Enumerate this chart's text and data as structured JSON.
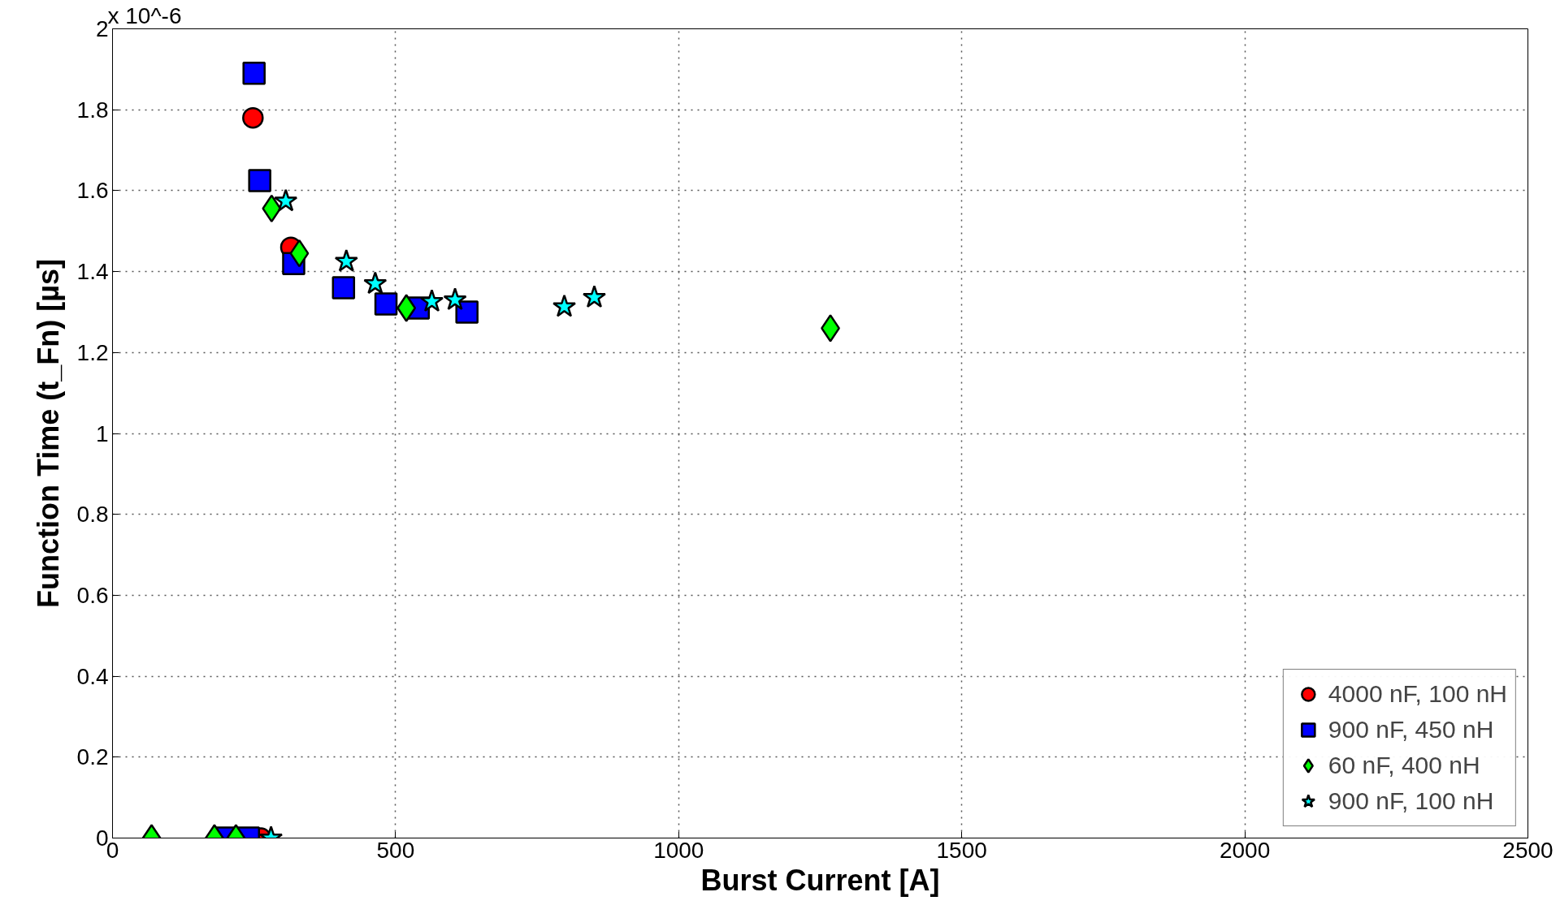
{
  "chart_data": {
    "type": "scatter",
    "xlabel": "Burst Current [A]",
    "ylabel": "Function Time (t_Fn) [µs]",
    "annotations": [
      "x 10^-6"
    ],
    "xlim": [
      0,
      2500
    ],
    "xticks": [
      0,
      500,
      1000,
      1500,
      2000,
      2500
    ],
    "ylim": [
      0,
      2
    ],
    "yticks": [
      0,
      0.2,
      0.4,
      0.6,
      0.8,
      1,
      1.2,
      1.4,
      1.6,
      1.8,
      2
    ],
    "grid": true,
    "legend": "bottom right",
    "series": [
      {
        "name": "4000 nF, 100 nH",
        "color": "#ff0000",
        "marker": "circle",
        "x": [
          248,
          315,
          262
        ],
        "values": [
          1.78,
          1.46,
          0
        ]
      },
      {
        "name": "900 nF, 450 nH",
        "color": "#0000ff",
        "marker": "square",
        "x": [
          250,
          260,
          320,
          408,
          483,
          540,
          626,
          200,
          240
        ],
        "values": [
          1.89,
          1.625,
          1.42,
          1.36,
          1.32,
          1.31,
          1.3,
          0,
          0
        ]
      },
      {
        "name": "60 nF, 400 nH",
        "color": "#00ff00",
        "marker": "diamond",
        "x": [
          281,
          330,
          519,
          1268,
          69,
          180,
          218
        ],
        "values": [
          1.556,
          1.445,
          1.31,
          1.26,
          0,
          0,
          0
        ]
      },
      {
        "name": "900 nF, 100 nH",
        "color": "#00ffff",
        "marker": "star",
        "x": [
          306,
          413,
          464,
          564,
          605,
          798,
          851,
          280
        ],
        "values": [
          1.574,
          1.425,
          1.37,
          1.326,
          1.33,
          1.313,
          1.336,
          0
        ]
      }
    ]
  }
}
